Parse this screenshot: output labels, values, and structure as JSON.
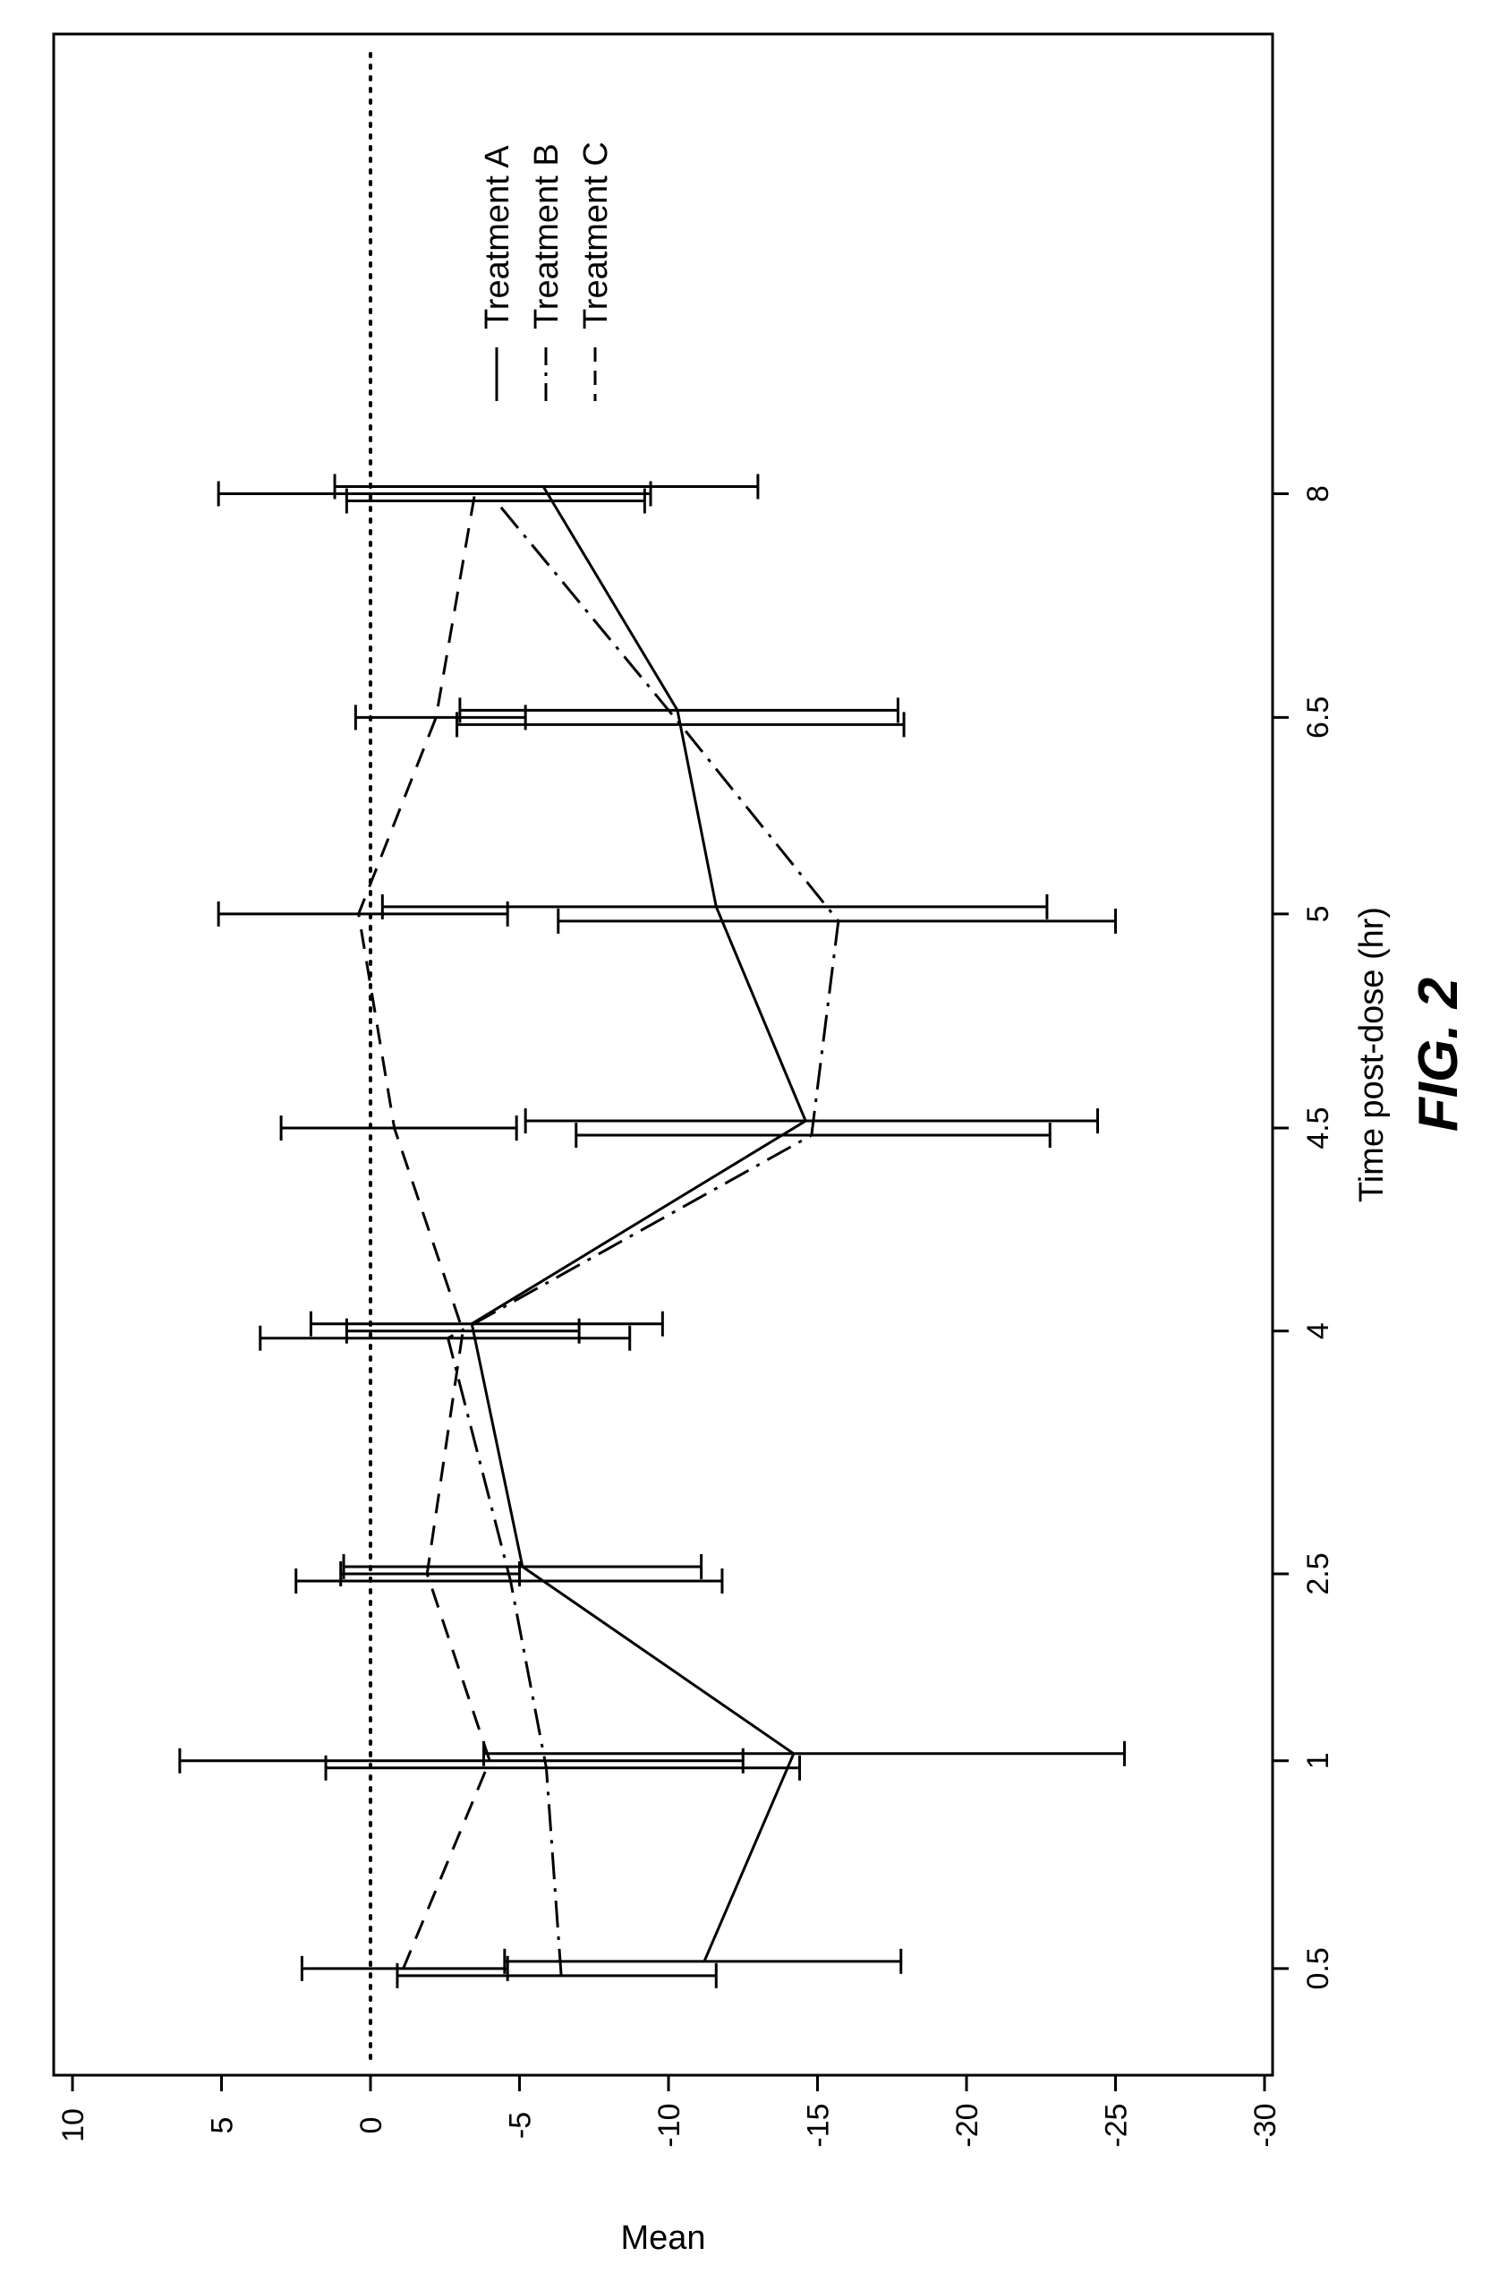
{
  "chart_data": {
    "type": "line",
    "xlabel": "Time post-dose (hr)",
    "ylabel": "Mean",
    "caption": "FIG. 2",
    "x": [
      0.5,
      1,
      2.5,
      4,
      4.5,
      5,
      6.5,
      8
    ],
    "x_tick_labels": [
      "0.5",
      "1",
      "2.5",
      "4",
      "4.5",
      "5",
      "6.5",
      "8"
    ],
    "y_ticks": [
      10,
      5,
      0,
      -5,
      -10,
      -15,
      -20,
      -25,
      -30
    ],
    "y_tick_labels": [
      "10",
      "5",
      "0",
      "-5",
      "-10",
      "-15",
      "-20",
      "-25",
      "-30"
    ],
    "ylim": [
      -30,
      10
    ],
    "reference_line": 0,
    "legend_position": "top-right",
    "series": [
      {
        "name": "Treatment A",
        "style": "solid",
        "values": [
          -11.2,
          -14.2,
          -5.1,
          -3.4,
          -14.6,
          -11.6,
          -10.3,
          -5.8
        ],
        "lower": [
          -17.8,
          -25.3,
          -11.1,
          -9.8,
          -24.4,
          -22.7,
          -17.7,
          -13.0
        ],
        "upper": [
          -4.5,
          -3.8,
          0.9,
          2.0,
          -5.2,
          -0.4,
          -3.0,
          1.2
        ]
      },
      {
        "name": "Treatment B",
        "style": "dashdot",
        "values": [
          -6.4,
          -5.9,
          -4.7,
          -2.6,
          -14.8,
          -15.7,
          -10.4,
          -4.2
        ],
        "lower": [
          -11.6,
          -14.4,
          -11.8,
          -8.7,
          -22.8,
          -25.0,
          -17.9,
          -9.2
        ],
        "upper": [
          -0.9,
          1.5,
          2.5,
          3.7,
          -6.9,
          -6.3,
          -2.9,
          0.8
        ]
      },
      {
        "name": "Treatment C",
        "style": "dashed",
        "values": [
          -1.1,
          -4.0,
          -1.9,
          -3.1,
          -0.8,
          0.4,
          -2.2,
          -3.5
        ],
        "lower": [
          -4.6,
          -12.5,
          -5.0,
          -7.0,
          -4.9,
          -4.6,
          -5.2,
          -9.4
        ],
        "upper": [
          2.3,
          6.4,
          1.0,
          0.8,
          3.0,
          5.1,
          0.5,
          5.1
        ]
      }
    ]
  }
}
